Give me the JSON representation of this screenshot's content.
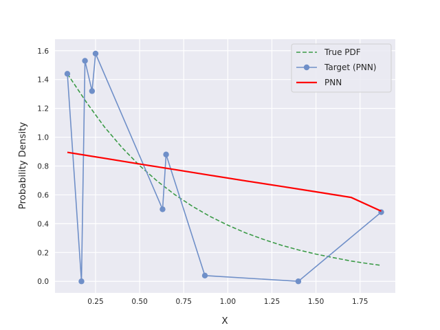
{
  "chart_data": {
    "type": "line",
    "title": "",
    "xlabel": "X",
    "ylabel": "Probability Density",
    "xlim": [
      0.02,
      1.95
    ],
    "ylim": [
      -0.08,
      1.68
    ],
    "xticks": [
      0.25,
      0.5,
      0.75,
      1.0,
      1.25,
      1.5,
      1.75
    ],
    "xtick_labels": [
      "0.25",
      "0.50",
      "0.75",
      "1.00",
      "1.25",
      "1.50",
      "1.75"
    ],
    "yticks": [
      0.0,
      0.2,
      0.4,
      0.6,
      0.8,
      1.0,
      1.2,
      1.4,
      1.6
    ],
    "ytick_labels": [
      "0.0",
      "0.2",
      "0.4",
      "0.6",
      "0.8",
      "1.0",
      "1.2",
      "1.4",
      "1.6"
    ],
    "grid": true,
    "legend_position": "top-right",
    "series": [
      {
        "name": "True PDF",
        "style": "dashed",
        "color": "#3a9a46",
        "x": [
          0.09,
          0.2,
          0.3,
          0.4,
          0.5,
          0.6,
          0.7,
          0.8,
          0.9,
          1.0,
          1.1,
          1.2,
          1.3,
          1.4,
          1.5,
          1.6,
          1.7,
          1.8,
          1.87
        ],
        "y": [
          1.44,
          1.239,
          1.072,
          0.928,
          0.803,
          0.695,
          0.601,
          0.52,
          0.45,
          0.39,
          0.337,
          0.292,
          0.252,
          0.218,
          0.189,
          0.164,
          0.141,
          0.122,
          0.111
        ]
      },
      {
        "name": "Target (PNN)",
        "style": "line-marker",
        "color": "#6f8fc8",
        "x": [
          0.09,
          0.17,
          0.19,
          0.23,
          0.25,
          0.63,
          0.65,
          0.87,
          1.4,
          1.87
        ],
        "y": [
          1.44,
          0.0,
          1.53,
          1.32,
          1.58,
          0.5,
          0.88,
          0.04,
          0.0,
          0.48
        ]
      },
      {
        "name": "PNN",
        "style": "solid",
        "color": "#ff0000",
        "x": [
          0.09,
          0.3,
          0.5,
          0.7,
          0.9,
          1.1,
          1.3,
          1.5,
          1.7,
          1.87
        ],
        "y": [
          0.895,
          0.854,
          0.814,
          0.775,
          0.736,
          0.697,
          0.66,
          0.621,
          0.582,
          0.487
        ]
      }
    ]
  }
}
